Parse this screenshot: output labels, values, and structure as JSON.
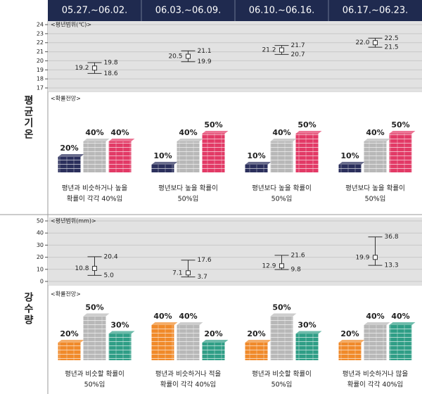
{
  "header": {
    "weeks": [
      "05.27.~06.02.",
      "06.03.~06.09.",
      "06.10.~06.16.",
      "06.17.~06.23."
    ]
  },
  "temperature": {
    "label": "평균기온",
    "range_title": "<평년범위(℃)>",
    "ylim": [
      17,
      24
    ],
    "yticks": [
      17,
      18,
      19,
      20,
      21,
      22,
      23,
      24
    ],
    "means": [
      19.2,
      20.5,
      21.2,
      22.0
    ],
    "mean_labels": [
      "19.2",
      "20.5",
      "21.2",
      "22.0"
    ],
    "lows": [
      18.6,
      19.9,
      20.7,
      21.5
    ],
    "low_labels": [
      "18.6",
      "19.9",
      "20.7",
      "21.5"
    ],
    "highs": [
      19.8,
      21.1,
      21.7,
      22.5
    ],
    "high_labels": [
      "19.8",
      "21.1",
      "21.7",
      "22.5"
    ],
    "prob_title": "<확률전망>",
    "colors": [
      "#2b2f5c",
      "#b8b8b8",
      "#e23a66"
    ],
    "probs": [
      {
        "values": [
          20,
          40,
          40
        ],
        "value_labels": [
          "20%",
          "40%",
          "40%"
        ],
        "caption": [
          "평년과 비슷하거나 높을",
          "확률이 각각 40%임"
        ]
      },
      {
        "values": [
          10,
          40,
          50
        ],
        "value_labels": [
          "10%",
          "40%",
          "50%"
        ],
        "caption": [
          "평년보다 높을 확률이",
          "50%임"
        ]
      },
      {
        "values": [
          10,
          40,
          50
        ],
        "value_labels": [
          "10%",
          "40%",
          "50%"
        ],
        "caption": [
          "평년보다 높을 확률이",
          "50%임"
        ]
      },
      {
        "values": [
          10,
          40,
          50
        ],
        "value_labels": [
          "10%",
          "40%",
          "50%"
        ],
        "caption": [
          "평년보다 높을 확률이",
          "50%임"
        ]
      }
    ]
  },
  "precipitation": {
    "label": "강수량",
    "range_title": "<평년범위(mm)>",
    "ylim": [
      0,
      50
    ],
    "yticks": [
      0,
      10,
      20,
      30,
      40,
      50
    ],
    "means": [
      10.8,
      7.1,
      12.9,
      19.9
    ],
    "mean_labels": [
      "10.8",
      "7.1",
      "12.9",
      "19.9"
    ],
    "lows": [
      5.0,
      3.7,
      9.8,
      13.3
    ],
    "low_labels": [
      "5.0",
      "3.7",
      "9.8",
      "13.3"
    ],
    "highs": [
      20.4,
      17.6,
      21.6,
      36.8
    ],
    "high_labels": [
      "20.4",
      "17.6",
      "21.6",
      "36.8"
    ],
    "prob_title": "<확률전망>",
    "colors": [
      "#f08a2a",
      "#b8b8b8",
      "#2f9e86"
    ],
    "probs": [
      {
        "values": [
          20,
          50,
          30
        ],
        "value_labels": [
          "20%",
          "50%",
          "30%"
        ],
        "caption": [
          "평년과 비슷할 확률이",
          "50%임"
        ]
      },
      {
        "values": [
          40,
          40,
          20
        ],
        "value_labels": [
          "40%",
          "40%",
          "20%"
        ],
        "caption": [
          "평년과 비슷하거나 적을",
          "확률이 각각 40%임"
        ]
      },
      {
        "values": [
          20,
          50,
          30
        ],
        "value_labels": [
          "20%",
          "50%",
          "30%"
        ],
        "caption": [
          "평년과 비슷할 확률이",
          "50%임"
        ]
      },
      {
        "values": [
          20,
          40,
          40
        ],
        "value_labels": [
          "20%",
          "40%",
          "40%"
        ],
        "caption": [
          "평년과 비슷하거나 많을",
          "확률이 각각 40%임"
        ]
      }
    ]
  }
}
